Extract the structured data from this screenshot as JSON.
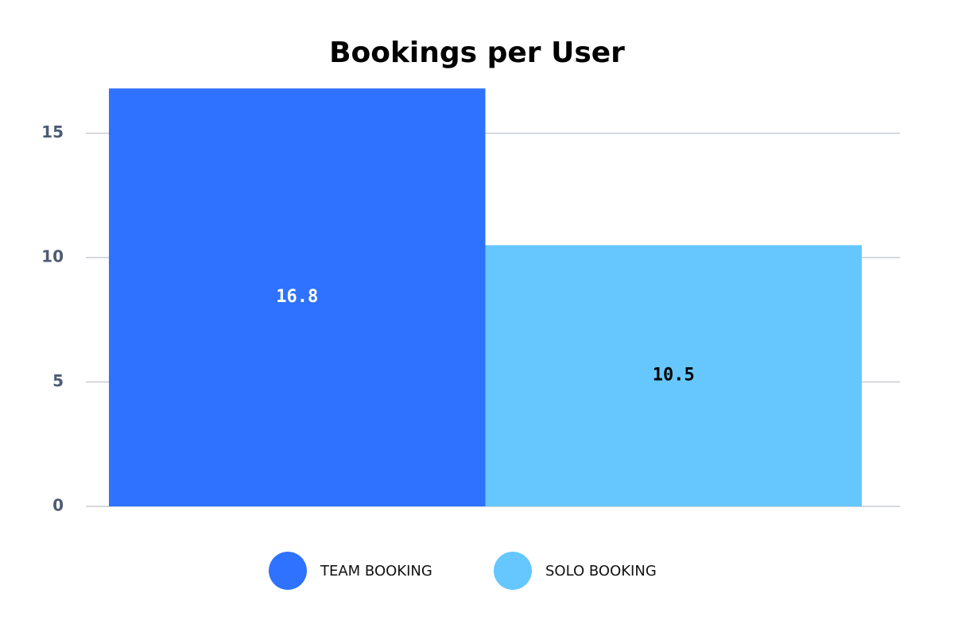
{
  "chart_data": {
    "type": "bar",
    "title": "Bookings per User",
    "categories": [
      null
    ],
    "series": [
      {
        "name": "TEAM BOOKING",
        "color": "#2e72ff",
        "values": [
          16.8
        ]
      },
      {
        "name": "SOLO BOOKING",
        "color": "#66c7ff",
        "values": [
          10.5
        ]
      }
    ],
    "ylim": [
      0,
      17
    ],
    "yticks": [
      0,
      5,
      10,
      15
    ],
    "grid": true,
    "legend": "bottom"
  }
}
